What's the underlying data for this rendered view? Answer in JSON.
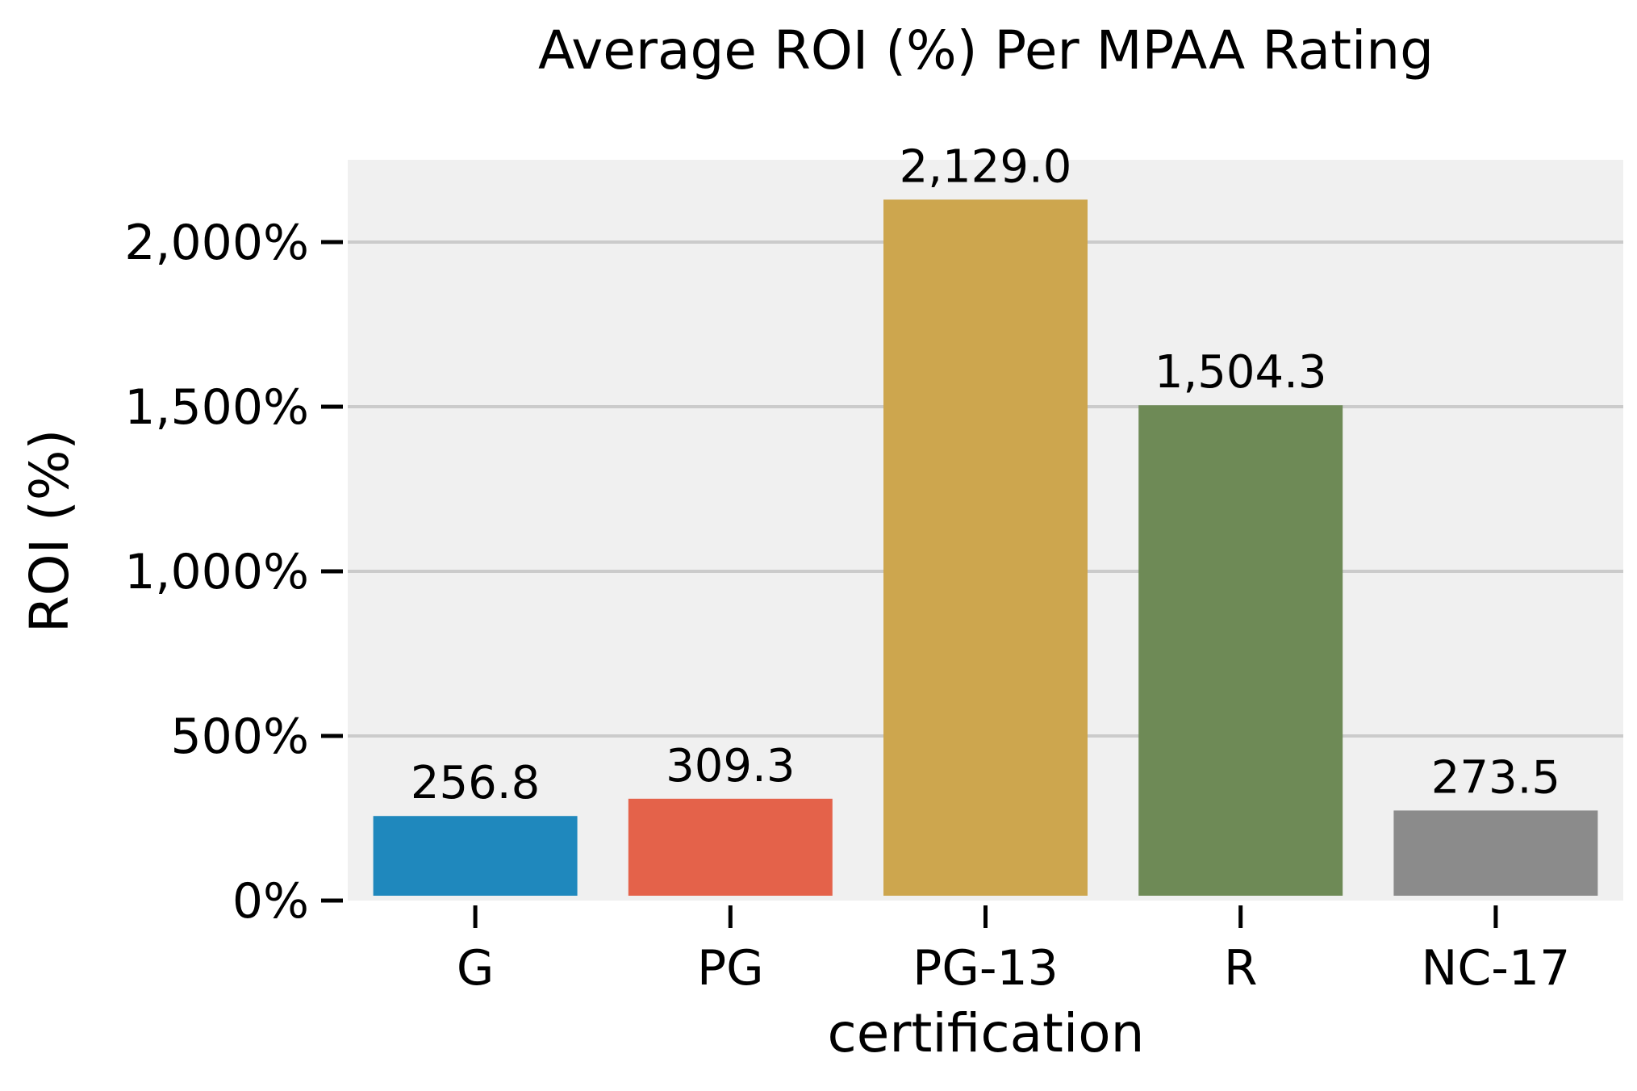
{
  "chart_data": {
    "type": "bar",
    "title": "Average ROI (%) Per MPAA Rating",
    "xlabel": "certification",
    "ylabel": "ROI (%)",
    "categories": [
      "G",
      "PG",
      "PG-13",
      "R",
      "NC-17"
    ],
    "values": [
      256.8,
      309.3,
      2129.0,
      1504.3,
      273.5
    ],
    "data_labels": [
      "256.8",
      "309.3",
      "2,129.0",
      "1,504.3",
      "273.5"
    ],
    "colors": [
      "#1f88bd",
      "#e4624a",
      "#cda64e",
      "#6e8a56",
      "#8b8b8b"
    ],
    "yticks": [
      0,
      500,
      1000,
      1500,
      2000
    ],
    "ytick_labels": [
      "0%",
      "500%",
      "1,000%",
      "1,500%",
      "2,000%"
    ],
    "ylim": [
      0,
      2250
    ],
    "grid": true,
    "background": "#f0f0f0",
    "grid_color": "#cbcbcb"
  }
}
